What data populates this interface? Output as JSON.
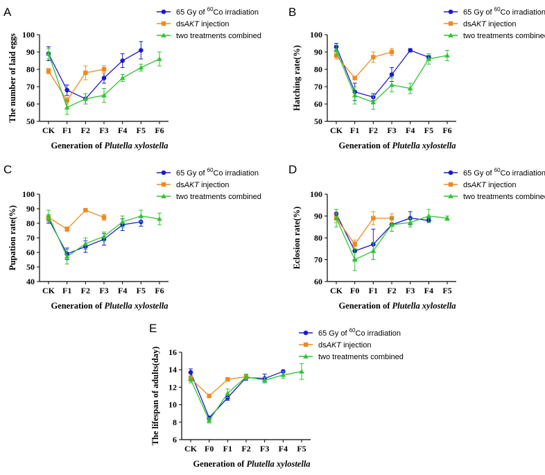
{
  "colors": {
    "irradiation": "#1a1acc",
    "dsakt": "#f0891e",
    "combined": "#2ec52e"
  },
  "legend": {
    "irr_prefix": "65 Gy of ",
    "irr_sup": "60",
    "irr_suffix": "Co irradiation",
    "ds_prefix": "ds",
    "ds_italic": "AKT",
    "ds_suffix": " injection",
    "combined": "two treatments combined"
  },
  "xlabel": {
    "prefix": "Generation of ",
    "species": "Plutella xylostella"
  },
  "chart_data": [
    {
      "id": "A",
      "type": "line",
      "panel_letter": "A",
      "ylabel": "The number of laid eggs",
      "ylim": [
        50,
        100
      ],
      "yticks": [
        50,
        60,
        70,
        80,
        90,
        100
      ],
      "categories": [
        "CK",
        "F1",
        "F2",
        "F3",
        "F4",
        "F5",
        "F6"
      ],
      "series": [
        {
          "key": "irradiation",
          "marker": "circle",
          "values": [
            89,
            68,
            63,
            75,
            85,
            91,
            null
          ],
          "errors": [
            4,
            3,
            3,
            3,
            4,
            5,
            null
          ]
        },
        {
          "key": "dsakt",
          "marker": "square",
          "values": [
            79,
            62,
            78,
            80,
            null,
            null,
            null
          ],
          "errors": [
            1.5,
            2,
            4,
            2,
            null,
            null,
            null
          ]
        },
        {
          "key": "combined",
          "marker": "triangle",
          "values": [
            89,
            58,
            63,
            65,
            75,
            81,
            86
          ],
          "errors": [
            3,
            4,
            3,
            4,
            2,
            2,
            4
          ]
        }
      ]
    },
    {
      "id": "B",
      "type": "line",
      "panel_letter": "B",
      "ylabel": "Hatching rate(%)",
      "ylim": [
        50,
        100
      ],
      "yticks": [
        50,
        60,
        70,
        80,
        90,
        100
      ],
      "categories": [
        "CK",
        "F1",
        "F2",
        "F3",
        "F4",
        "F5",
        "F6"
      ],
      "series": [
        {
          "key": "irradiation",
          "marker": "circle",
          "values": [
            93,
            67,
            64,
            77,
            91,
            87,
            null
          ],
          "errors": [
            2,
            5,
            2,
            4,
            1,
            1,
            null
          ]
        },
        {
          "key": "dsakt",
          "marker": "square",
          "values": [
            88,
            75,
            87,
            90,
            null,
            null,
            null
          ],
          "errors": [
            2,
            1,
            3,
            2,
            null,
            null,
            null
          ]
        },
        {
          "key": "combined",
          "marker": "triangle",
          "values": [
            91,
            65,
            61,
            71,
            69,
            86,
            88
          ],
          "errors": [
            3,
            5,
            4,
            4,
            3,
            3,
            3
          ]
        }
      ]
    },
    {
      "id": "C",
      "type": "line",
      "panel_letter": "C",
      "ylabel": "Pupation rate(%)",
      "ylim": [
        40,
        100
      ],
      "yticks": [
        40,
        50,
        60,
        70,
        80,
        90,
        100
      ],
      "categories": [
        "CK",
        "F1",
        "F2",
        "F3",
        "F4",
        "F5",
        "F6"
      ],
      "series": [
        {
          "key": "irradiation",
          "marker": "circle",
          "values": [
            83,
            59,
            64,
            69,
            79,
            81,
            null
          ],
          "errors": [
            3,
            4,
            4,
            4,
            4,
            3,
            null
          ]
        },
        {
          "key": "dsakt",
          "marker": "square",
          "values": [
            84,
            76,
            89,
            84,
            null,
            null,
            null
          ],
          "errors": [
            2,
            1.5,
            1,
            2,
            null,
            null,
            null
          ]
        },
        {
          "key": "combined",
          "marker": "triangle",
          "values": [
            85,
            57,
            66,
            71,
            81,
            85,
            83
          ],
          "errors": [
            4,
            5,
            4,
            3,
            4,
            4,
            4
          ]
        }
      ]
    },
    {
      "id": "D",
      "type": "line",
      "panel_letter": "D",
      "ylabel": "Eclosion rate(%)",
      "ylim": [
        60,
        100
      ],
      "yticks": [
        60,
        70,
        80,
        90,
        100
      ],
      "categories": [
        "CK",
        "F0",
        "F1",
        "F2",
        "F3",
        "F4",
        "F5"
      ],
      "series": [
        {
          "key": "irradiation",
          "marker": "circle",
          "values": [
            91,
            74,
            77,
            86,
            89,
            88,
            null
          ],
          "errors": [
            2,
            4,
            7,
            3,
            3,
            1,
            null
          ]
        },
        {
          "key": "dsakt",
          "marker": "square",
          "values": [
            89,
            77,
            89,
            89,
            null,
            null,
            null
          ],
          "errors": [
            2,
            2,
            3,
            2,
            null,
            null,
            null
          ]
        },
        {
          "key": "combined",
          "marker": "triangle",
          "values": [
            89,
            70,
            74,
            86,
            87,
            90,
            89
          ],
          "errors": [
            4,
            5,
            4,
            3,
            2,
            3,
            1
          ]
        }
      ]
    },
    {
      "id": "E",
      "type": "line",
      "panel_letter": "E",
      "ylabel": "The lifespan of adults(day)",
      "ylim": [
        6,
        16
      ],
      "yticks": [
        6,
        8,
        10,
        12,
        14,
        16
      ],
      "categories": [
        "CK",
        "F0",
        "F1",
        "F2",
        "F3",
        "F4",
        "F5"
      ],
      "series": [
        {
          "key": "irradiation",
          "marker": "circle",
          "values": [
            13.7,
            8.5,
            10.8,
            13.1,
            13.0,
            13.8,
            null
          ],
          "errors": [
            0.4,
            0.2,
            0.3,
            0.3,
            0.5,
            0.1,
            null
          ]
        },
        {
          "key": "dsakt",
          "marker": "square",
          "values": [
            13.0,
            11.0,
            12.9,
            13.2,
            null,
            null,
            null
          ],
          "errors": [
            0.3,
            0.1,
            0.2,
            0.2,
            null,
            null,
            null
          ]
        },
        {
          "key": "combined",
          "marker": "triangle",
          "values": [
            12.9,
            8.2,
            11.3,
            13.2,
            12.8,
            13.4,
            13.8
          ],
          "errors": [
            0.4,
            0.3,
            0.5,
            0.3,
            0.3,
            0.4,
            0.9
          ]
        }
      ]
    }
  ]
}
